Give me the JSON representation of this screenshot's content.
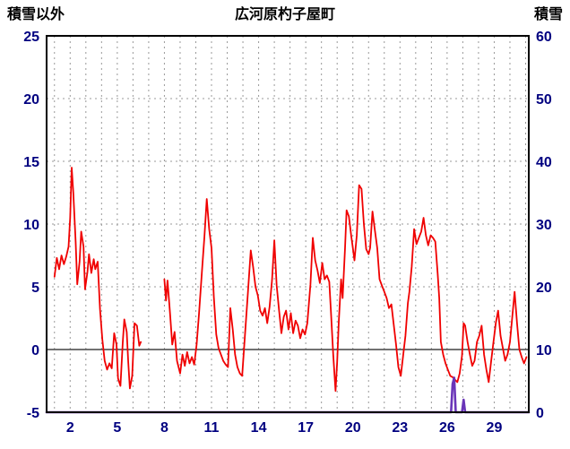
{
  "header": {
    "left_axis_title": "積雪以外",
    "title": "広河原杓子屋町",
    "right_axis_title": "積雪"
  },
  "chart_data": {
    "type": "line",
    "title": "広河原杓子屋町",
    "grid": true,
    "legend_position": "none",
    "x_axis": {
      "label": "",
      "min": 0.5,
      "max": 31.2,
      "tick_labels": [
        2,
        5,
        8,
        11,
        14,
        17,
        20,
        23,
        26,
        29
      ],
      "gridline_days": [
        1,
        2,
        3,
        4,
        5,
        6,
        7,
        8,
        9,
        10,
        11,
        12,
        13,
        14,
        15,
        16,
        17,
        18,
        19,
        20,
        21,
        22,
        23,
        24,
        25,
        26,
        27,
        28,
        29,
        30,
        31
      ]
    },
    "left_axis": {
      "label": "積雪以外",
      "min": -5,
      "max": 25,
      "tick_labels": [
        25,
        20,
        15,
        10,
        5,
        0,
        -5
      ],
      "dashed_gridlines_at": [
        20,
        15,
        10,
        5
      ],
      "zero_line_at": 0
    },
    "right_axis": {
      "label": "積雪",
      "min": 0,
      "max": 60,
      "tick_labels": [
        60,
        50,
        40,
        30,
        20,
        10,
        0
      ]
    },
    "colors": {
      "temperature_line": "#f00000",
      "snow_line": "#6a35b8",
      "grid": "#999999",
      "zero_line": "#444444",
      "border": "#000000",
      "tick_text": "#000080",
      "title_text": "#000000"
    },
    "series": [
      {
        "name": "積雪以外",
        "axis": "left",
        "segments": [
          [
            [
              1.0,
              5.8
            ],
            [
              1.15,
              7.3
            ],
            [
              1.3,
              6.4
            ],
            [
              1.45,
              7.5
            ],
            [
              1.6,
              6.8
            ],
            [
              1.75,
              7.4
            ],
            [
              1.9,
              8.2
            ],
            [
              2.0,
              10.5
            ],
            [
              2.1,
              14.5
            ],
            [
              2.2,
              12.5
            ],
            [
              2.35,
              8.6
            ],
            [
              2.45,
              5.2
            ],
            [
              2.6,
              7.0
            ],
            [
              2.7,
              9.4
            ],
            [
              2.85,
              8.2
            ],
            [
              2.95,
              4.8
            ],
            [
              3.1,
              6.2
            ],
            [
              3.2,
              7.6
            ],
            [
              3.35,
              6.1
            ],
            [
              3.5,
              7.2
            ],
            [
              3.6,
              6.4
            ],
            [
              3.75,
              7.0
            ],
            [
              3.9,
              3.2
            ],
            [
              4.05,
              0.8
            ],
            [
              4.2,
              -0.9
            ],
            [
              4.35,
              -1.6
            ],
            [
              4.5,
              -1.1
            ],
            [
              4.65,
              -1.5
            ],
            [
              4.8,
              1.3
            ],
            [
              4.95,
              0.4
            ],
            [
              5.05,
              -2.3
            ],
            [
              5.2,
              -2.9
            ],
            [
              5.35,
              0.6
            ],
            [
              5.45,
              2.4
            ],
            [
              5.6,
              1.4
            ],
            [
              5.7,
              -1.0
            ],
            [
              5.8,
              -3.1
            ],
            [
              5.95,
              -2.1
            ],
            [
              6.1,
              2.1
            ],
            [
              6.25,
              1.9
            ],
            [
              6.4,
              0.3
            ],
            [
              6.5,
              0.6
            ]
          ],
          [
            [
              8.0,
              5.6
            ],
            [
              8.1,
              3.9
            ],
            [
              8.2,
              5.5
            ],
            [
              8.35,
              3.0
            ],
            [
              8.5,
              0.4
            ],
            [
              8.65,
              1.4
            ],
            [
              8.8,
              -0.9
            ],
            [
              9.0,
              -1.9
            ],
            [
              9.15,
              -0.4
            ],
            [
              9.3,
              -1.3
            ],
            [
              9.45,
              -0.2
            ],
            [
              9.6,
              -1.1
            ],
            [
              9.75,
              -0.6
            ],
            [
              9.9,
              -1.2
            ],
            [
              10.05,
              0.4
            ],
            [
              10.2,
              2.8
            ],
            [
              10.4,
              6.4
            ],
            [
              10.55,
              9.0
            ],
            [
              10.7,
              12.0
            ],
            [
              10.85,
              9.6
            ],
            [
              11.0,
              8.1
            ],
            [
              11.15,
              4.2
            ],
            [
              11.3,
              1.2
            ],
            [
              11.45,
              0.1
            ],
            [
              11.6,
              -0.4
            ],
            [
              11.75,
              -0.9
            ],
            [
              11.9,
              -1.2
            ],
            [
              12.05,
              -1.4
            ],
            [
              12.2,
              3.3
            ],
            [
              12.35,
              1.6
            ],
            [
              12.5,
              -0.4
            ],
            [
              12.65,
              -1.4
            ],
            [
              12.8,
              -1.9
            ],
            [
              12.95,
              -2.1
            ],
            [
              13.1,
              0.6
            ],
            [
              13.3,
              4.2
            ],
            [
              13.5,
              7.9
            ],
            [
              13.65,
              6.6
            ],
            [
              13.8,
              5.0
            ],
            [
              13.95,
              4.3
            ],
            [
              14.1,
              3.1
            ],
            [
              14.25,
              2.7
            ],
            [
              14.4,
              3.3
            ],
            [
              14.55,
              2.1
            ],
            [
              14.7,
              3.4
            ],
            [
              14.85,
              5.5
            ],
            [
              15.0,
              8.7
            ],
            [
              15.15,
              5.1
            ],
            [
              15.3,
              3.1
            ],
            [
              15.45,
              1.3
            ],
            [
              15.6,
              2.6
            ],
            [
              15.75,
              3.1
            ],
            [
              15.9,
              1.6
            ],
            [
              16.05,
              2.9
            ],
            [
              16.2,
              1.3
            ],
            [
              16.35,
              2.3
            ],
            [
              16.5,
              1.9
            ],
            [
              16.65,
              0.9
            ],
            [
              16.8,
              1.6
            ],
            [
              16.95,
              1.2
            ],
            [
              17.1,
              2.1
            ],
            [
              17.3,
              5.2
            ],
            [
              17.45,
              8.9
            ],
            [
              17.6,
              7.1
            ],
            [
              17.75,
              6.3
            ],
            [
              17.9,
              5.3
            ],
            [
              18.05,
              6.9
            ],
            [
              18.2,
              5.6
            ],
            [
              18.35,
              5.9
            ],
            [
              18.5,
              5.4
            ],
            [
              18.6,
              3.1
            ],
            [
              18.75,
              -0.4
            ],
            [
              18.9,
              -3.3
            ],
            [
              19.0,
              -1.0
            ],
            [
              19.1,
              2.2
            ],
            [
              19.25,
              5.6
            ],
            [
              19.35,
              4.1
            ],
            [
              19.5,
              8.1
            ],
            [
              19.6,
              11.1
            ],
            [
              19.75,
              10.6
            ],
            [
              19.9,
              9.0
            ],
            [
              20.0,
              8.1
            ],
            [
              20.1,
              7.1
            ],
            [
              20.25,
              9.1
            ],
            [
              20.4,
              13.1
            ],
            [
              20.55,
              12.8
            ],
            [
              20.7,
              10.0
            ],
            [
              20.85,
              8.0
            ],
            [
              21.0,
              7.6
            ],
            [
              21.1,
              8.1
            ],
            [
              21.25,
              11.0
            ],
            [
              21.4,
              9.5
            ],
            [
              21.55,
              8.1
            ],
            [
              21.7,
              5.6
            ],
            [
              21.85,
              5.1
            ],
            [
              22.0,
              4.6
            ],
            [
              22.15,
              4.1
            ],
            [
              22.3,
              3.3
            ],
            [
              22.45,
              3.6
            ],
            [
              22.6,
              2.0
            ],
            [
              22.75,
              0.4
            ],
            [
              22.9,
              -1.4
            ],
            [
              23.05,
              -2.1
            ],
            [
              23.2,
              -0.5
            ],
            [
              23.35,
              1.1
            ],
            [
              23.5,
              3.7
            ],
            [
              23.6,
              4.6
            ],
            [
              23.75,
              6.6
            ],
            [
              23.9,
              9.6
            ],
            [
              24.05,
              8.4
            ],
            [
              24.2,
              8.9
            ],
            [
              24.35,
              9.4
            ],
            [
              24.5,
              10.5
            ],
            [
              24.65,
              9.1
            ],
            [
              24.8,
              8.3
            ],
            [
              24.95,
              9.1
            ],
            [
              25.1,
              8.9
            ],
            [
              25.25,
              8.6
            ],
            [
              25.4,
              6.0
            ],
            [
              25.5,
              4.1
            ],
            [
              25.6,
              0.6
            ],
            [
              25.75,
              -0.4
            ],
            [
              25.9,
              -1.1
            ],
            [
              26.05,
              -1.6
            ],
            [
              26.2,
              -2.1
            ],
            [
              26.35,
              -2.2
            ],
            [
              26.5,
              -2.4
            ],
            [
              26.65,
              -2.6
            ],
            [
              26.8,
              -1.9
            ],
            [
              26.95,
              -0.5
            ],
            [
              27.05,
              2.1
            ],
            [
              27.15,
              1.9
            ],
            [
              27.3,
              0.6
            ],
            [
              27.45,
              -0.4
            ],
            [
              27.6,
              -1.3
            ],
            [
              27.75,
              -0.9
            ],
            [
              27.9,
              0.6
            ],
            [
              28.05,
              1.1
            ],
            [
              28.2,
              1.9
            ],
            [
              28.35,
              -0.4
            ],
            [
              28.5,
              -1.6
            ],
            [
              28.65,
              -2.6
            ],
            [
              28.8,
              -1.0
            ],
            [
              28.95,
              0.6
            ],
            [
              29.1,
              2.1
            ],
            [
              29.25,
              3.1
            ],
            [
              29.4,
              1.1
            ],
            [
              29.55,
              0.1
            ],
            [
              29.7,
              -0.9
            ],
            [
              29.85,
              -0.4
            ],
            [
              30.0,
              0.6
            ],
            [
              30.15,
              2.6
            ],
            [
              30.3,
              4.6
            ],
            [
              30.45,
              2.1
            ],
            [
              30.6,
              0.0
            ],
            [
              30.75,
              -0.6
            ],
            [
              30.9,
              -1.1
            ],
            [
              31.05,
              -0.6
            ]
          ]
        ]
      },
      {
        "name": "積雪",
        "axis": "right",
        "segments": [
          [
            [
              0.5,
              0
            ],
            [
              26.25,
              0
            ],
            [
              26.35,
              4.5
            ],
            [
              26.45,
              5.5
            ],
            [
              26.55,
              0
            ],
            [
              26.95,
              0
            ],
            [
              27.05,
              2.0
            ],
            [
              27.15,
              0
            ],
            [
              31.2,
              0
            ]
          ]
        ]
      }
    ]
  }
}
